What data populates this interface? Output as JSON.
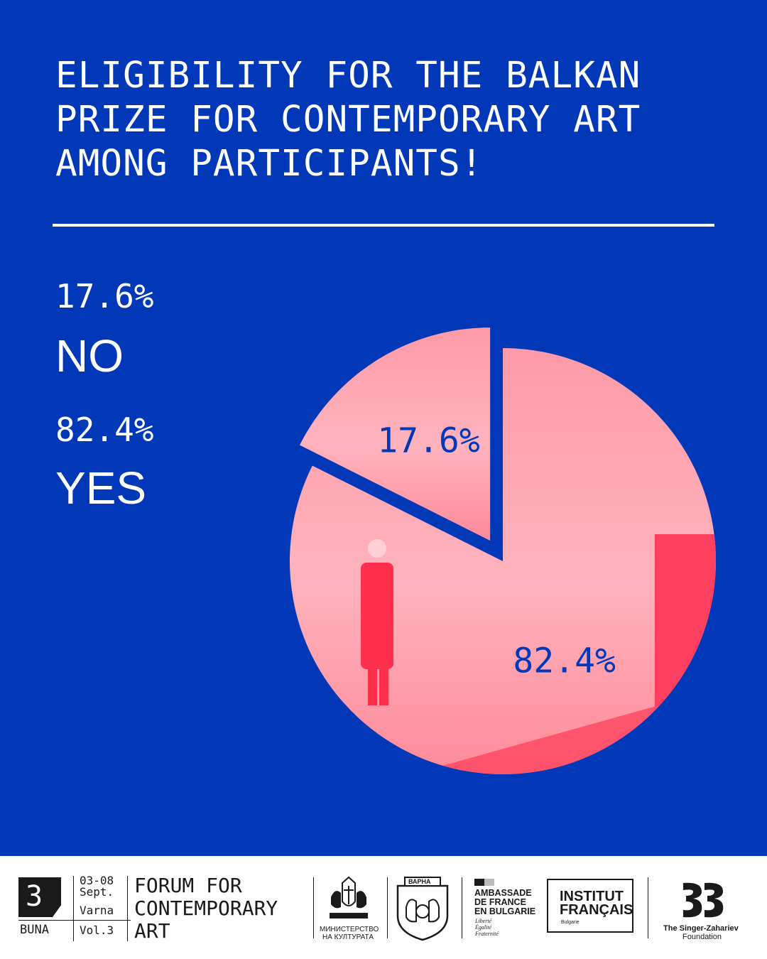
{
  "chart_data": {
    "type": "pie",
    "title": "ELIGIBILITY FOR THE BALKAN PRIZE FOR CONTEMPORARY ART AMONG PARTICIPANTS!",
    "categories": [
      "NO",
      "YES"
    ],
    "values": [
      17.6,
      82.4
    ],
    "value_labels": [
      "17.6%",
      "82.4%"
    ],
    "exploded_slice": "NO",
    "legend_placement": "left"
  },
  "colors": {
    "background": "#0038b8",
    "text": "#ffffff",
    "slice_fill": "#ff6f86",
    "slice_label": "#0038b8"
  },
  "footer": {
    "logo_number": "3",
    "logo_name": "BUNA",
    "dates": "03-08",
    "month": "Sept.",
    "city": "Varna",
    "volume": "Vol.3",
    "forum_line1": "FORUM FOR",
    "forum_line2": "CONTEMPORARY",
    "forum_line3": "ART",
    "ministry_line1": "МИНИСТЕРСТВО",
    "ministry_line2": "НА КУЛТУРАТА",
    "varna_crest_text": "ВАРНА",
    "embassy_line1": "AMBASSADE",
    "embassy_line2": "DE FRANCE",
    "embassy_line3": "EN BULGARIE",
    "embassy_motto1": "Liberté",
    "embassy_motto2": "Égalité",
    "embassy_motto3": "Fraternité",
    "institut_line1": "INSTITUT",
    "institut_line2": "FRANÇAIS",
    "institut_sub": "Bulgarie",
    "foundation_line1": "The Singer-Zahariev",
    "foundation_line2": "Foundation"
  }
}
